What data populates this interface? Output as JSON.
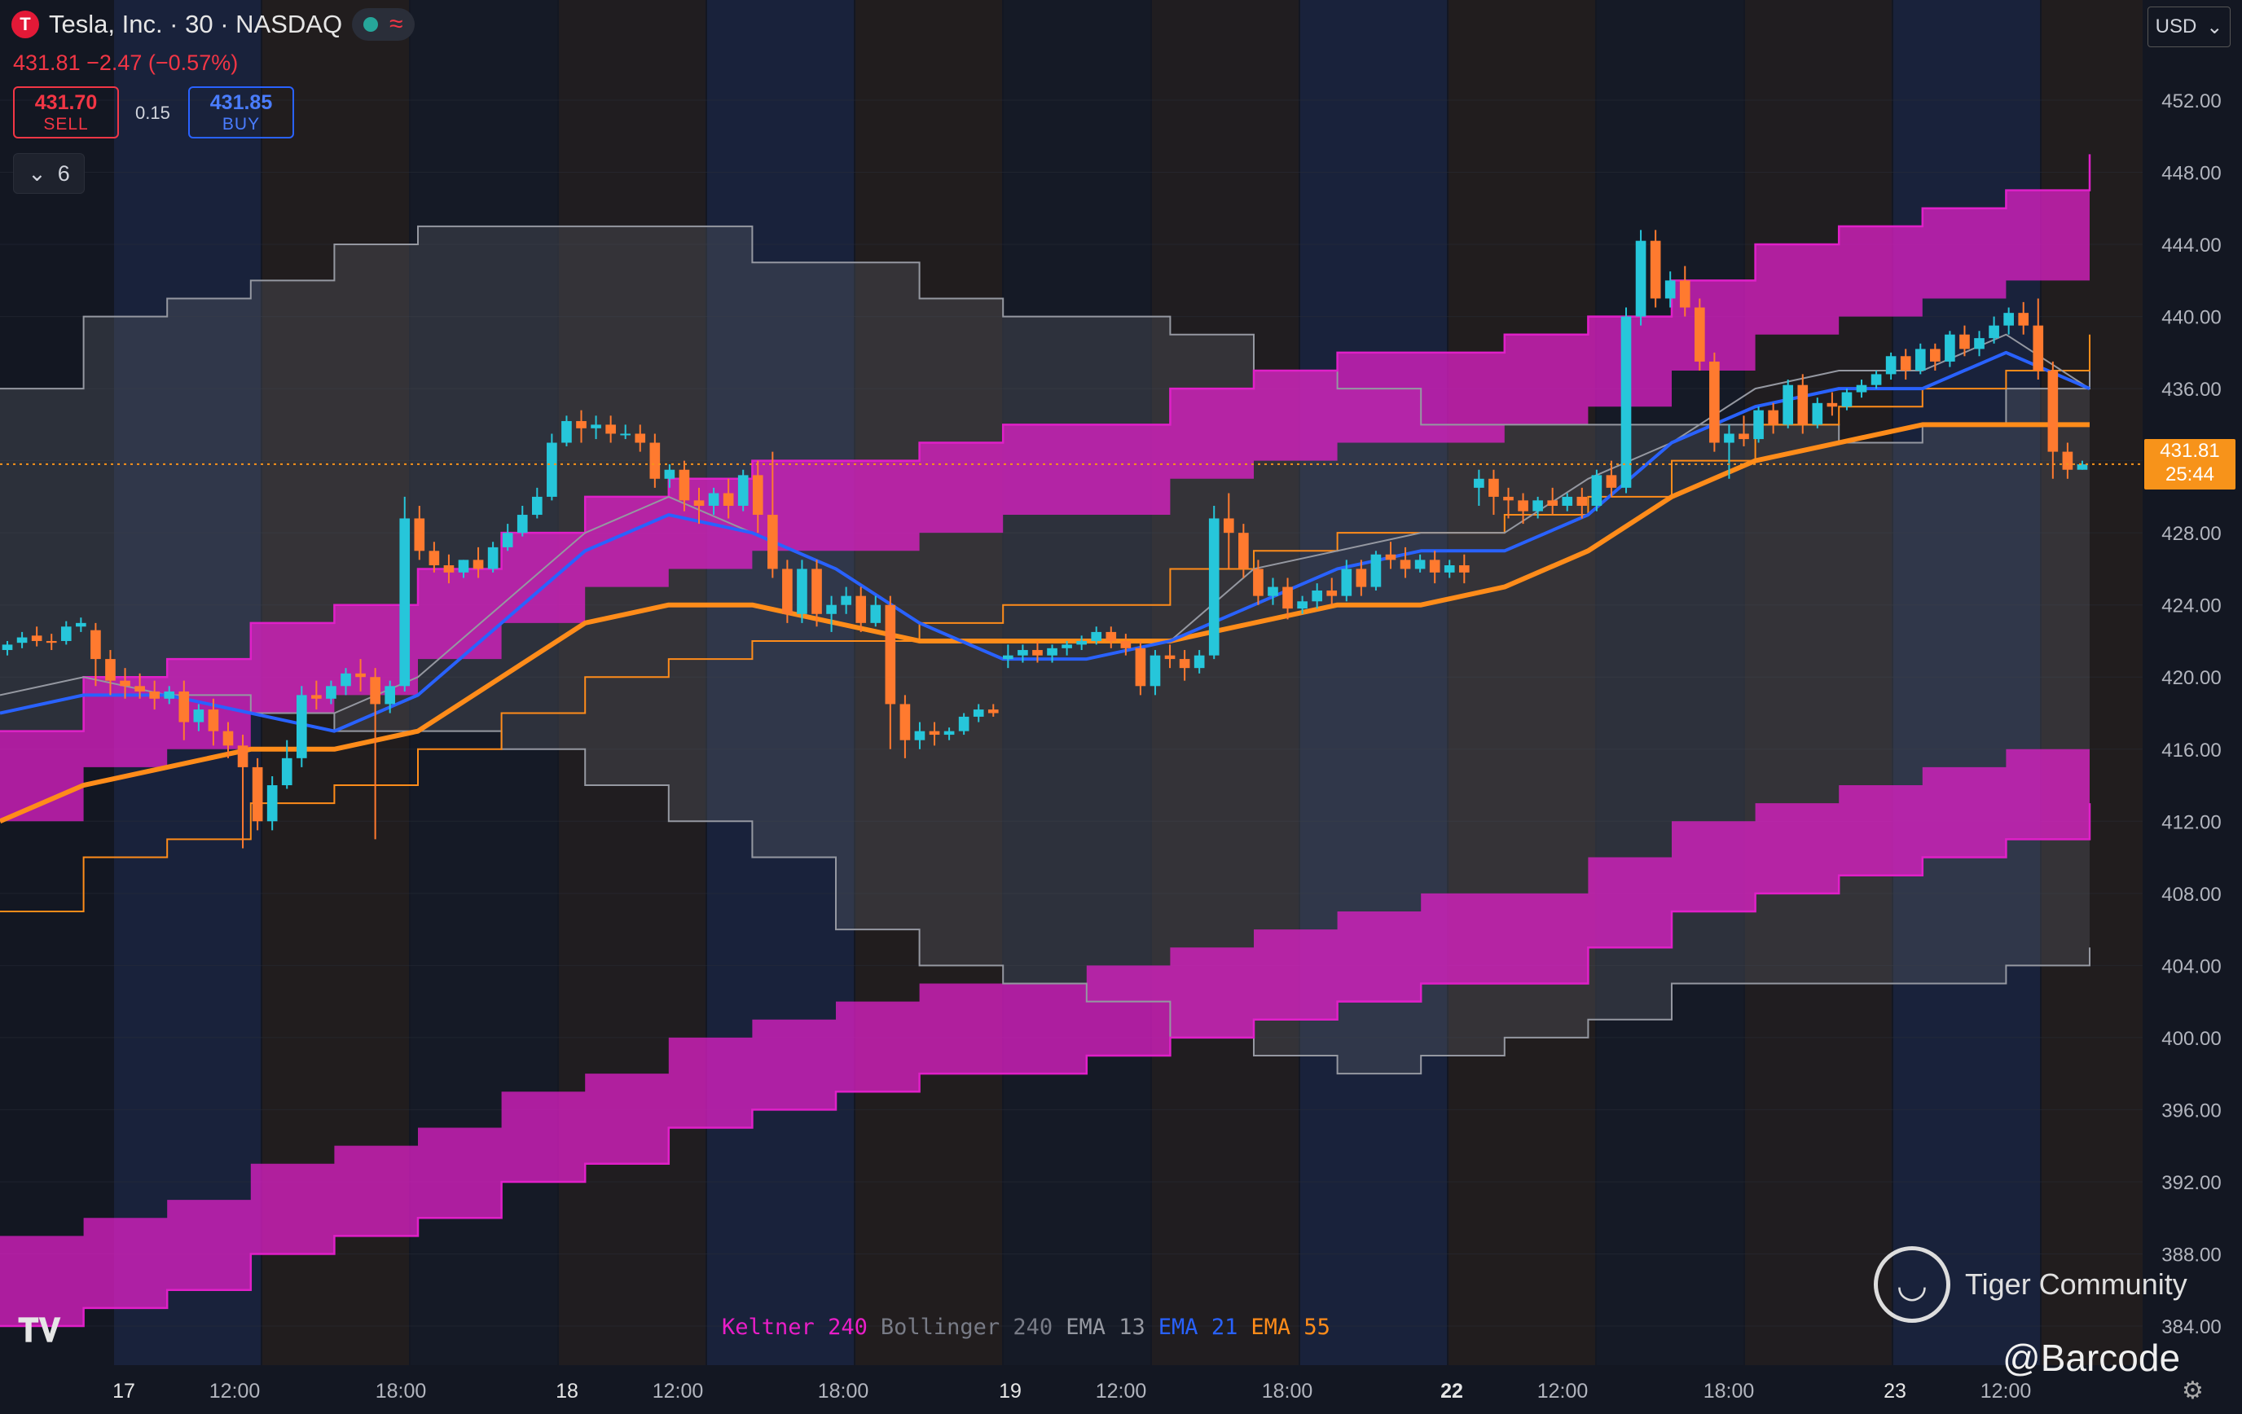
{
  "header": {
    "symbol_logo": "T",
    "title": "Tesla, Inc. · 30 · NASDAQ",
    "status_dot_color": "#26a69a",
    "wave_icon": "≈",
    "change": "431.81 −2.47 (−0.57%)",
    "sell_price": "431.70",
    "sell_label": "SELL",
    "spread": "0.15",
    "buy_price": "431.85",
    "buy_label": "BUY",
    "indicators_count": "6"
  },
  "currency": "USD",
  "last_price": {
    "value": "431.81",
    "countdown": "25:44"
  },
  "legend": [
    {
      "name": "Keltner",
      "param": "240",
      "color": "#e91ec8"
    },
    {
      "name": "Bollinger",
      "param": "240",
      "color": "#787b86"
    },
    {
      "name": "EMA",
      "param": "13",
      "color": "#9598a1"
    },
    {
      "name": "EMA",
      "param": "21",
      "color": "#2962ff"
    },
    {
      "name": "EMA",
      "param": "55",
      "color": "#ff8c1a"
    }
  ],
  "watermark": {
    "brand": "Tiger Community",
    "handle": "@Barcode"
  },
  "colors": {
    "up": "#26c6da",
    "down": "#ff7a2f",
    "keltner": "#e020c8",
    "bollinger": "#5b5e66",
    "ema13": "#9598a1",
    "ema21": "#2962ff",
    "ema55": "#ff8c1a",
    "bg": "#131722"
  },
  "chart_data": {
    "type": "line",
    "x_ticks": [
      "17",
      "12:00",
      "18:00",
      "18",
      "12:00",
      "18:00",
      "19",
      "12:00",
      "18:00",
      "22",
      "12:00",
      "18:00",
      "23",
      "12:00"
    ],
    "y_ticks": [
      "384.00",
      "388.00",
      "392.00",
      "396.00",
      "400.00",
      "404.00",
      "408.00",
      "412.00",
      "416.00",
      "420.00",
      "424.00",
      "428.00",
      "432.00",
      "436.00",
      "440.00",
      "444.00",
      "448.00",
      "452.00"
    ],
    "ylim": [
      383,
      457
    ],
    "x": [
      0,
      4,
      8,
      12,
      16,
      20,
      24,
      28,
      32,
      36,
      40,
      44,
      48,
      52,
      56,
      60,
      64,
      68,
      72,
      76,
      80,
      84,
      88,
      92,
      96,
      100
    ],
    "series": [
      {
        "name": "EMA 13",
        "values": [
          419,
          420,
          419,
          418,
          418,
          420,
          424,
          428,
          430,
          428,
          426,
          423,
          421,
          421,
          422,
          426,
          427,
          428,
          428,
          431,
          433,
          436,
          437,
          437,
          439,
          436
        ]
      },
      {
        "name": "EMA 21",
        "values": [
          418,
          419,
          419,
          418,
          417,
          419,
          423,
          427,
          429,
          428,
          426,
          423,
          421,
          421,
          422,
          424,
          426,
          427,
          427,
          429,
          433,
          435,
          436,
          436,
          438,
          436
        ]
      },
      {
        "name": "EMA 55",
        "values": [
          412,
          414,
          415,
          416,
          416,
          417,
          420,
          423,
          424,
          424,
          423,
          422,
          422,
          422,
          422,
          423,
          424,
          424,
          425,
          427,
          430,
          432,
          433,
          434,
          434,
          434
        ]
      },
      {
        "name": "Keltner upper",
        "values": [
          417,
          420,
          421,
          423,
          424,
          426,
          428,
          430,
          431,
          432,
          432,
          433,
          434,
          434,
          436,
          437,
          438,
          438,
          439,
          440,
          442,
          444,
          445,
          446,
          447,
          449
        ]
      },
      {
        "name": "Keltner lower",
        "values": [
          384,
          385,
          386,
          388,
          389,
          390,
          392,
          393,
          395,
          396,
          397,
          398,
          398,
          399,
          400,
          401,
          402,
          403,
          403,
          405,
          407,
          408,
          409,
          410,
          411,
          413
        ]
      },
      {
        "name": "Bollinger upper",
        "values": [
          436,
          440,
          441,
          442,
          444,
          445,
          445,
          445,
          445,
          443,
          443,
          441,
          440,
          440,
          439,
          437,
          436,
          434,
          434,
          434,
          434,
          434,
          433,
          434,
          436,
          438
        ]
      },
      {
        "name": "Bollinger lower",
        "values": [
          417,
          419,
          419,
          418,
          417,
          417,
          416,
          414,
          412,
          410,
          406,
          404,
          403,
          402,
          400,
          399,
          398,
          399,
          400,
          401,
          403,
          403,
          403,
          403,
          404,
          405
        ]
      }
    ],
    "candles": [
      [
        421.5,
        422.0,
        421.8,
        421.2
      ],
      [
        421.9,
        422.5,
        422.2,
        421.6
      ],
      [
        422.3,
        422.8,
        422.0,
        421.7
      ],
      [
        422.0,
        422.4,
        421.9,
        421.5
      ],
      [
        422.0,
        423.1,
        422.8,
        421.8
      ],
      [
        422.8,
        423.3,
        423.0,
        422.5
      ],
      [
        422.6,
        423.0,
        421.0,
        419.5
      ],
      [
        421.0,
        421.5,
        419.8,
        419.0
      ],
      [
        419.8,
        420.5,
        419.5,
        418.8
      ],
      [
        419.5,
        420.2,
        419.2,
        418.8
      ],
      [
        419.2,
        419.8,
        418.8,
        418.2
      ],
      [
        418.8,
        419.5,
        419.2,
        418.5
      ],
      [
        419.2,
        419.8,
        417.5,
        416.5
      ],
      [
        417.5,
        418.5,
        418.2,
        417.0
      ],
      [
        418.2,
        418.8,
        417.0,
        416.2
      ],
      [
        417.0,
        417.5,
        416.2,
        415.5
      ],
      [
        416.2,
        416.8,
        415.0,
        410.5
      ],
      [
        415.0,
        415.5,
        412.0,
        411.5
      ],
      [
        412.0,
        414.5,
        414.0,
        411.5
      ],
      [
        414.0,
        416.5,
        415.5,
        413.8
      ],
      [
        415.5,
        419.5,
        419.0,
        415.0
      ],
      [
        419.0,
        419.8,
        418.8,
        418.2
      ],
      [
        418.8,
        419.8,
        419.5,
        418.5
      ],
      [
        419.5,
        420.5,
        420.2,
        419.0
      ],
      [
        420.2,
        421.0,
        420.0,
        419.2
      ],
      [
        420.0,
        420.5,
        418.5,
        411.0
      ],
      [
        418.5,
        419.8,
        419.5,
        418.0
      ],
      [
        419.5,
        430.0,
        428.8,
        419.2
      ],
      [
        428.8,
        429.5,
        427.0,
        426.5
      ],
      [
        427.0,
        427.5,
        426.2,
        425.8
      ],
      [
        426.2,
        426.8,
        425.8,
        425.2
      ],
      [
        425.8,
        426.5,
        426.5,
        425.5
      ],
      [
        426.5,
        427.2,
        426.0,
        425.5
      ],
      [
        426.0,
        427.5,
        427.2,
        425.8
      ],
      [
        427.2,
        428.5,
        428.0,
        427.0
      ],
      [
        428.0,
        429.5,
        429.0,
        427.8
      ],
      [
        429.0,
        430.5,
        430.0,
        428.8
      ],
      [
        430.0,
        433.5,
        433.0,
        429.8
      ],
      [
        433.0,
        434.5,
        434.2,
        432.8
      ],
      [
        434.2,
        434.8,
        433.8,
        433.0
      ],
      [
        433.8,
        434.5,
        434.0,
        433.2
      ],
      [
        434.0,
        434.5,
        433.5,
        433.0
      ],
      [
        433.5,
        434.0,
        433.5,
        433.2
      ],
      [
        433.5,
        434.0,
        433.0,
        432.5
      ],
      [
        433.0,
        433.5,
        431.0,
        430.5
      ],
      [
        431.0,
        431.8,
        431.5,
        430.5
      ],
      [
        431.5,
        432.0,
        429.8,
        429.2
      ],
      [
        429.8,
        430.5,
        429.5,
        428.5
      ],
      [
        429.5,
        430.5,
        430.2,
        429.0
      ],
      [
        430.2,
        431.0,
        429.5,
        428.8
      ],
      [
        429.5,
        431.5,
        431.2,
        429.2
      ],
      [
        431.2,
        432.0,
        429.0,
        428.0
      ],
      [
        429.0,
        432.5,
        426.0,
        425.5
      ],
      [
        426.0,
        426.5,
        423.5,
        423.0
      ],
      [
        423.5,
        426.5,
        426.0,
        423.0
      ],
      [
        426.0,
        426.5,
        423.5,
        422.8
      ],
      [
        423.5,
        424.5,
        424.0,
        422.5
      ],
      [
        424.0,
        425.0,
        424.5,
        423.5
      ],
      [
        424.5,
        425.0,
        423.0,
        422.5
      ],
      [
        423.0,
        424.5,
        424.0,
        422.8
      ],
      [
        424.0,
        424.5,
        418.5,
        416.0
      ],
      [
        418.5,
        419.0,
        416.5,
        415.5
      ],
      [
        416.5,
        417.5,
        417.0,
        416.0
      ],
      [
        417.0,
        417.5,
        416.8,
        416.2
      ],
      [
        416.8,
        417.2,
        417.0,
        416.5
      ],
      [
        417.0,
        418.0,
        417.8,
        416.8
      ],
      [
        417.8,
        418.5,
        418.2,
        417.5
      ],
      [
        418.2,
        418.5,
        418.0,
        417.8
      ],
      [
        421.0,
        421.8,
        421.2,
        420.5
      ],
      [
        421.2,
        421.8,
        421.5,
        420.8
      ],
      [
        421.5,
        422.0,
        421.2,
        420.8
      ],
      [
        421.2,
        421.8,
        421.6,
        420.8
      ],
      [
        421.6,
        422.0,
        421.8,
        421.2
      ],
      [
        421.8,
        422.3,
        422.0,
        421.5
      ],
      [
        422.0,
        422.8,
        422.5,
        421.8
      ],
      [
        422.5,
        422.8,
        422.0,
        421.6
      ],
      [
        422.0,
        422.4,
        421.6,
        421.2
      ],
      [
        421.6,
        422.0,
        419.5,
        419.0
      ],
      [
        419.5,
        421.5,
        421.2,
        419.0
      ],
      [
        421.2,
        421.8,
        421.0,
        420.5
      ],
      [
        421.0,
        421.5,
        420.5,
        419.8
      ],
      [
        420.5,
        421.5,
        421.2,
        420.2
      ],
      [
        421.2,
        429.5,
        428.8,
        421.0
      ],
      [
        428.8,
        430.2,
        428.0,
        426.0
      ],
      [
        428.0,
        428.5,
        426.0,
        425.5
      ],
      [
        426.0,
        426.5,
        424.5,
        424.0
      ],
      [
        424.5,
        425.5,
        425.0,
        424.0
      ],
      [
        425.0,
        425.5,
        423.8,
        423.2
      ],
      [
        423.8,
        424.5,
        424.2,
        423.5
      ],
      [
        424.2,
        425.2,
        424.8,
        423.8
      ],
      [
        424.8,
        425.5,
        424.5,
        424.0
      ],
      [
        424.5,
        426.5,
        426.0,
        424.2
      ],
      [
        426.0,
        426.5,
        425.0,
        424.5
      ],
      [
        425.0,
        427.0,
        426.8,
        424.8
      ],
      [
        426.8,
        427.5,
        426.5,
        426.0
      ],
      [
        426.5,
        427.2,
        426.0,
        425.5
      ],
      [
        426.0,
        426.8,
        426.5,
        425.8
      ],
      [
        426.5,
        427.0,
        425.8,
        425.2
      ],
      [
        425.8,
        426.5,
        426.2,
        425.5
      ],
      [
        426.2,
        426.8,
        425.8,
        425.2
      ],
      [
        430.5,
        431.5,
        431.0,
        429.5
      ],
      [
        431.0,
        431.5,
        430.0,
        429.0
      ],
      [
        430.0,
        430.5,
        429.8,
        428.8
      ],
      [
        429.8,
        430.2,
        429.2,
        428.5
      ],
      [
        429.2,
        430.0,
        429.8,
        428.8
      ],
      [
        429.8,
        430.5,
        429.5,
        429.0
      ],
      [
        429.5,
        430.2,
        430.0,
        429.2
      ],
      [
        430.0,
        430.5,
        429.5,
        428.8
      ],
      [
        429.5,
        431.5,
        431.2,
        429.2
      ],
      [
        431.2,
        432.0,
        430.5,
        430.0
      ],
      [
        430.5,
        440.5,
        440.0,
        430.2
      ],
      [
        440.0,
        444.8,
        444.2,
        439.5
      ],
      [
        444.2,
        444.8,
        441.0,
        440.5
      ],
      [
        441.0,
        442.5,
        442.0,
        440.5
      ],
      [
        442.0,
        442.8,
        440.5,
        440.0
      ],
      [
        440.5,
        441.0,
        437.5,
        437.0
      ],
      [
        437.5,
        438.0,
        433.0,
        432.5
      ],
      [
        433.0,
        434.0,
        433.5,
        431.0
      ],
      [
        433.5,
        434.5,
        433.2,
        432.8
      ],
      [
        433.2,
        435.0,
        434.8,
        433.0
      ],
      [
        434.8,
        435.2,
        434.0,
        433.5
      ],
      [
        434.0,
        436.5,
        436.2,
        433.8
      ],
      [
        436.2,
        436.8,
        434.0,
        433.5
      ],
      [
        434.0,
        435.5,
        435.2,
        433.8
      ],
      [
        435.2,
        435.8,
        435.0,
        434.5
      ],
      [
        435.0,
        436.0,
        435.8,
        434.8
      ],
      [
        435.8,
        436.5,
        436.2,
        435.5
      ],
      [
        436.2,
        437.0,
        436.8,
        436.0
      ],
      [
        436.8,
        438.0,
        437.8,
        436.5
      ],
      [
        437.8,
        438.2,
        437.0,
        436.5
      ],
      [
        437.0,
        438.5,
        438.2,
        436.8
      ],
      [
        438.2,
        438.5,
        437.5,
        437.0
      ],
      [
        437.5,
        439.2,
        439.0,
        437.2
      ],
      [
        439.0,
        439.5,
        438.2,
        437.8
      ],
      [
        438.2,
        439.2,
        438.8,
        437.8
      ],
      [
        438.8,
        440.0,
        439.5,
        438.5
      ],
      [
        439.5,
        440.5,
        440.2,
        439.0
      ],
      [
        440.2,
        440.8,
        439.5,
        439.0
      ],
      [
        439.5,
        441.0,
        437.0,
        436.5
      ],
      [
        437.0,
        437.5,
        432.5,
        431.0
      ],
      [
        432.5,
        433.0,
        431.5,
        431.0
      ],
      [
        431.5,
        432.0,
        431.8,
        431.5
      ]
    ]
  }
}
